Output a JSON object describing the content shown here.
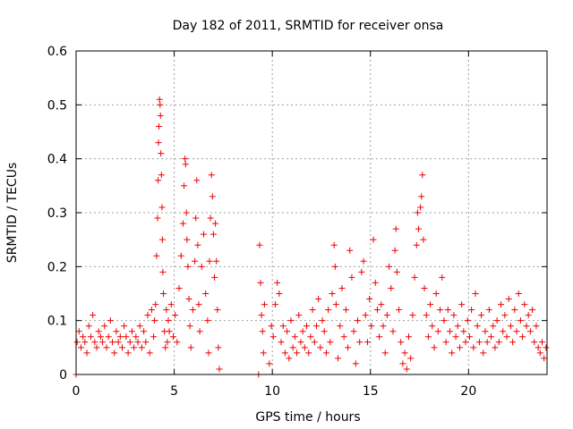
{
  "chart_data": {
    "type": "scatter",
    "title": "Day 182 of 2011, SRMTID for receiver onsa",
    "xlabel": "GPS time / hours",
    "ylabel": "SRMTID / TECUs",
    "xlim": [
      0,
      24
    ],
    "ylim": [
      0,
      0.6
    ],
    "xticks": [
      0,
      5,
      10,
      15,
      20
    ],
    "xtick_labels": [
      "0",
      "5",
      "10",
      "15",
      "20"
    ],
    "yticks": [
      0,
      0.1,
      0.2,
      0.3,
      0.4,
      0.5,
      0.6
    ],
    "ytick_labels": [
      "0",
      "0.1",
      "0.2",
      "0.3",
      "0.4",
      "0.5",
      "0.6"
    ],
    "grid": true,
    "legend": "none",
    "marker": "+",
    "color": "#ee0000",
    "series": [
      {
        "name": "SRMTID",
        "points": [
          [
            0.0,
            0.0
          ],
          [
            0.05,
            0.06
          ],
          [
            0.15,
            0.08
          ],
          [
            0.25,
            0.05
          ],
          [
            0.35,
            0.07
          ],
          [
            0.45,
            0.06
          ],
          [
            0.55,
            0.04
          ],
          [
            0.65,
            0.09
          ],
          [
            0.75,
            0.07
          ],
          [
            0.85,
            0.11
          ],
          [
            0.95,
            0.06
          ],
          [
            1.05,
            0.05
          ],
          [
            1.15,
            0.08
          ],
          [
            1.25,
            0.07
          ],
          [
            1.35,
            0.06
          ],
          [
            1.45,
            0.09
          ],
          [
            1.55,
            0.05
          ],
          [
            1.65,
            0.07
          ],
          [
            1.75,
            0.1
          ],
          [
            1.85,
            0.06
          ],
          [
            1.95,
            0.04
          ],
          [
            2.05,
            0.08
          ],
          [
            2.15,
            0.06
          ],
          [
            2.25,
            0.07
          ],
          [
            2.35,
            0.05
          ],
          [
            2.45,
            0.09
          ],
          [
            2.55,
            0.07
          ],
          [
            2.65,
            0.04
          ],
          [
            2.75,
            0.06
          ],
          [
            2.85,
            0.08
          ],
          [
            2.95,
            0.05
          ],
          [
            3.05,
            0.07
          ],
          [
            3.15,
            0.06
          ],
          [
            3.25,
            0.09
          ],
          [
            3.35,
            0.05
          ],
          [
            3.45,
            0.08
          ],
          [
            3.55,
            0.06
          ],
          [
            3.65,
            0.11
          ],
          [
            3.75,
            0.04
          ],
          [
            3.85,
            0.12
          ],
          [
            3.95,
            0.07
          ],
          [
            4.0,
            0.1
          ],
          [
            4.05,
            0.13
          ],
          [
            4.1,
            0.22
          ],
          [
            4.15,
            0.29
          ],
          [
            4.18,
            0.36
          ],
          [
            4.2,
            0.43
          ],
          [
            4.22,
            0.46
          ],
          [
            4.25,
            0.51
          ],
          [
            4.28,
            0.5
          ],
          [
            4.3,
            0.48
          ],
          [
            4.32,
            0.41
          ],
          [
            4.35,
            0.37
          ],
          [
            4.38,
            0.31
          ],
          [
            4.4,
            0.25
          ],
          [
            4.42,
            0.19
          ],
          [
            4.45,
            0.15
          ],
          [
            4.5,
            0.08
          ],
          [
            4.55,
            0.05
          ],
          [
            4.6,
            0.12
          ],
          [
            4.65,
            0.06
          ],
          [
            4.7,
            0.1
          ],
          [
            4.75,
            0.08
          ],
          [
            4.85,
            0.13
          ],
          [
            4.95,
            0.07
          ],
          [
            5.05,
            0.11
          ],
          [
            5.15,
            0.06
          ],
          [
            5.25,
            0.16
          ],
          [
            5.35,
            0.22
          ],
          [
            5.45,
            0.28
          ],
          [
            5.5,
            0.35
          ],
          [
            5.55,
            0.4
          ],
          [
            5.58,
            0.39
          ],
          [
            5.62,
            0.3
          ],
          [
            5.65,
            0.25
          ],
          [
            5.7,
            0.2
          ],
          [
            5.75,
            0.14
          ],
          [
            5.8,
            0.09
          ],
          [
            5.85,
            0.05
          ],
          [
            5.95,
            0.12
          ],
          [
            6.05,
            0.21
          ],
          [
            6.1,
            0.29
          ],
          [
            6.15,
            0.36
          ],
          [
            6.2,
            0.24
          ],
          [
            6.25,
            0.13
          ],
          [
            6.3,
            0.08
          ],
          [
            6.4,
            0.2
          ],
          [
            6.5,
            0.26
          ],
          [
            6.6,
            0.15
          ],
          [
            6.7,
            0.1
          ],
          [
            6.75,
            0.04
          ],
          [
            6.8,
            0.21
          ],
          [
            6.85,
            0.29
          ],
          [
            6.9,
            0.37
          ],
          [
            6.95,
            0.33
          ],
          [
            7.0,
            0.26
          ],
          [
            7.05,
            0.18
          ],
          [
            7.1,
            0.28
          ],
          [
            7.15,
            0.21
          ],
          [
            7.2,
            0.12
          ],
          [
            7.25,
            0.05
          ],
          [
            7.3,
            0.01
          ],
          [
            9.3,
            0.0
          ],
          [
            9.35,
            0.24
          ],
          [
            9.4,
            0.17
          ],
          [
            9.45,
            0.11
          ],
          [
            9.5,
            0.08
          ],
          [
            9.55,
            0.04
          ],
          [
            9.6,
            0.13
          ],
          [
            9.85,
            0.02
          ],
          [
            9.95,
            0.09
          ],
          [
            10.05,
            0.07
          ],
          [
            10.15,
            0.13
          ],
          [
            10.25,
            0.17
          ],
          [
            10.35,
            0.15
          ],
          [
            10.45,
            0.06
          ],
          [
            10.55,
            0.09
          ],
          [
            10.65,
            0.04
          ],
          [
            10.75,
            0.08
          ],
          [
            10.85,
            0.03
          ],
          [
            10.95,
            0.1
          ],
          [
            11.05,
            0.05
          ],
          [
            11.15,
            0.07
          ],
          [
            11.25,
            0.04
          ],
          [
            11.35,
            0.11
          ],
          [
            11.45,
            0.06
          ],
          [
            11.55,
            0.08
          ],
          [
            11.65,
            0.05
          ],
          [
            11.75,
            0.09
          ],
          [
            11.85,
            0.04
          ],
          [
            11.95,
            0.07
          ],
          [
            12.05,
            0.12
          ],
          [
            12.15,
            0.06
          ],
          [
            12.25,
            0.09
          ],
          [
            12.35,
            0.14
          ],
          [
            12.45,
            0.05
          ],
          [
            12.55,
            0.1
          ],
          [
            12.65,
            0.08
          ],
          [
            12.75,
            0.04
          ],
          [
            12.85,
            0.12
          ],
          [
            12.95,
            0.06
          ],
          [
            13.05,
            0.15
          ],
          [
            13.15,
            0.24
          ],
          [
            13.2,
            0.2
          ],
          [
            13.25,
            0.13
          ],
          [
            13.35,
            0.03
          ],
          [
            13.45,
            0.09
          ],
          [
            13.55,
            0.16
          ],
          [
            13.65,
            0.07
          ],
          [
            13.75,
            0.12
          ],
          [
            13.85,
            0.05
          ],
          [
            13.95,
            0.23
          ],
          [
            14.05,
            0.18
          ],
          [
            14.15,
            0.08
          ],
          [
            14.25,
            0.02
          ],
          [
            14.35,
            0.1
          ],
          [
            14.45,
            0.06
          ],
          [
            14.55,
            0.19
          ],
          [
            14.65,
            0.21
          ],
          [
            14.75,
            0.11
          ],
          [
            14.85,
            0.06
          ],
          [
            14.95,
            0.14
          ],
          [
            15.05,
            0.09
          ],
          [
            15.15,
            0.25
          ],
          [
            15.25,
            0.17
          ],
          [
            15.35,
            0.12
          ],
          [
            15.45,
            0.07
          ],
          [
            15.55,
            0.13
          ],
          [
            15.65,
            0.09
          ],
          [
            15.75,
            0.04
          ],
          [
            15.85,
            0.11
          ],
          [
            15.95,
            0.2
          ],
          [
            16.05,
            0.16
          ],
          [
            16.15,
            0.08
          ],
          [
            16.25,
            0.23
          ],
          [
            16.3,
            0.27
          ],
          [
            16.35,
            0.19
          ],
          [
            16.45,
            0.12
          ],
          [
            16.55,
            0.06
          ],
          [
            16.65,
            0.02
          ],
          [
            16.75,
            0.04
          ],
          [
            16.85,
            0.01
          ],
          [
            16.95,
            0.07
          ],
          [
            17.05,
            0.03
          ],
          [
            17.15,
            0.11
          ],
          [
            17.25,
            0.18
          ],
          [
            17.35,
            0.24
          ],
          [
            17.4,
            0.3
          ],
          [
            17.45,
            0.27
          ],
          [
            17.55,
            0.31
          ],
          [
            17.6,
            0.33
          ],
          [
            17.65,
            0.37
          ],
          [
            17.7,
            0.25
          ],
          [
            17.75,
            0.16
          ],
          [
            17.85,
            0.11
          ],
          [
            17.95,
            0.07
          ],
          [
            18.05,
            0.13
          ],
          [
            18.15,
            0.09
          ],
          [
            18.25,
            0.05
          ],
          [
            18.35,
            0.15
          ],
          [
            18.45,
            0.08
          ],
          [
            18.55,
            0.12
          ],
          [
            18.65,
            0.18
          ],
          [
            18.75,
            0.1
          ],
          [
            18.85,
            0.06
          ],
          [
            18.95,
            0.12
          ],
          [
            19.05,
            0.08
          ],
          [
            19.15,
            0.04
          ],
          [
            19.25,
            0.11
          ],
          [
            19.35,
            0.07
          ],
          [
            19.45,
            0.09
          ],
          [
            19.55,
            0.05
          ],
          [
            19.65,
            0.13
          ],
          [
            19.75,
            0.08
          ],
          [
            19.85,
            0.06
          ],
          [
            19.95,
            0.1
          ],
          [
            20.05,
            0.07
          ],
          [
            20.15,
            0.12
          ],
          [
            20.25,
            0.05
          ],
          [
            20.35,
            0.15
          ],
          [
            20.45,
            0.09
          ],
          [
            20.55,
            0.06
          ],
          [
            20.65,
            0.11
          ],
          [
            20.75,
            0.04
          ],
          [
            20.85,
            0.08
          ],
          [
            20.95,
            0.06
          ],
          [
            21.05,
            0.12
          ],
          [
            21.15,
            0.07
          ],
          [
            21.25,
            0.09
          ],
          [
            21.35,
            0.05
          ],
          [
            21.45,
            0.1
          ],
          [
            21.55,
            0.06
          ],
          [
            21.65,
            0.13
          ],
          [
            21.75,
            0.08
          ],
          [
            21.85,
            0.11
          ],
          [
            21.95,
            0.07
          ],
          [
            22.05,
            0.14
          ],
          [
            22.15,
            0.09
          ],
          [
            22.25,
            0.06
          ],
          [
            22.35,
            0.12
          ],
          [
            22.45,
            0.08
          ],
          [
            22.55,
            0.15
          ],
          [
            22.65,
            0.1
          ],
          [
            22.75,
            0.07
          ],
          [
            22.85,
            0.13
          ],
          [
            22.95,
            0.09
          ],
          [
            23.05,
            0.11
          ],
          [
            23.15,
            0.08
          ],
          [
            23.25,
            0.12
          ],
          [
            23.35,
            0.06
          ],
          [
            23.45,
            0.09
          ],
          [
            23.55,
            0.05
          ],
          [
            23.65,
            0.04
          ],
          [
            23.75,
            0.06
          ],
          [
            23.85,
            0.03
          ],
          [
            23.95,
            0.05
          ]
        ]
      }
    ]
  }
}
